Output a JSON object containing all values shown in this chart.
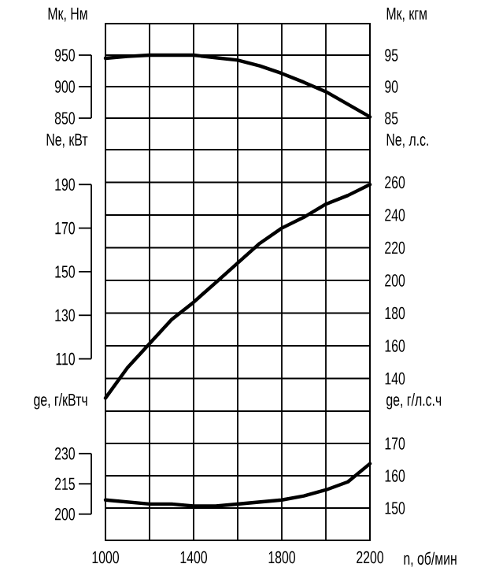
{
  "chart_data": [
    {
      "type": "line",
      "ylabel": "Мк, Нм",
      "y2label": "Мк, кгм",
      "x": [
        1000,
        1100,
        1200,
        1300,
        1400,
        1500,
        1600,
        1700,
        1800,
        1900,
        2000,
        2100,
        2200
      ],
      "series": [
        {
          "color": "#000000",
          "values": [
            945,
            948,
            950,
            950,
            950,
            946,
            942,
            933,
            921,
            907,
            892,
            872,
            852
          ]
        }
      ],
      "xlim": [
        1000,
        2200
      ],
      "xticks": [
        1000,
        {
          "value": 1200,
          "label": null
        },
        1400,
        {
          "value": 1600,
          "label": null
        },
        1800,
        {
          "value": 2000,
          "label": null
        },
        2200
      ],
      "ylim": [
        800,
        1000
      ],
      "yticks": [
        850,
        900,
        950
      ],
      "y2lim": [
        80,
        100
      ],
      "y2ticks": [
        85,
        90,
        95
      ],
      "grid": true,
      "tick_labels": "y"
    },
    {
      "type": "line",
      "ylabel": "Ne, кВт",
      "y2label": "Ne, л.с.",
      "x": [
        1000,
        1100,
        1200,
        1300,
        1400,
        1500,
        1600,
        1700,
        1800,
        1900,
        2000,
        2100,
        2200
      ],
      "series": [
        {
          "color": "#000000",
          "values": [
            92,
            106,
            117,
            128,
            136,
            145,
            154,
            163,
            170,
            175,
            181,
            185,
            190
          ]
        }
      ],
      "xlim": [
        1000,
        2200
      ],
      "xticks": [
        1000,
        {
          "value": 1200,
          "label": null
        },
        1400,
        {
          "value": 1600,
          "label": null
        },
        1800,
        {
          "value": 2000,
          "label": null
        },
        2200
      ],
      "ylim": [
        86,
        206
      ],
      "yticks": [
        110,
        130,
        150,
        170,
        190
      ],
      "y2lim": [
        120,
        280
      ],
      "y2ticks": [
        140,
        160,
        180,
        200,
        220,
        240,
        260
      ],
      "grid": true,
      "tick_labels": "y"
    },
    {
      "type": "line",
      "ylabel": "ge, г/кВтч",
      "y2label": "ge, г/л.с.ч",
      "xlabel": "n, об/мин",
      "x": [
        1000,
        1100,
        1200,
        1300,
        1400,
        1500,
        1600,
        1700,
        1800,
        1900,
        2000,
        2100,
        2200
      ],
      "series": [
        {
          "color": "#000000",
          "values": [
            207,
            206,
            205,
            205,
            204,
            204,
            205,
            206,
            207,
            209,
            212,
            216,
            225
          ]
        }
      ],
      "xlim": [
        1000,
        2200
      ],
      "xticks": [
        1000,
        {
          "value": 1200,
          "label": null
        },
        1400,
        {
          "value": 1600,
          "label": null
        },
        1800,
        {
          "value": 2000,
          "label": null
        },
        2200
      ],
      "ylim": [
        187,
        251
      ],
      "yticks": [
        200,
        215,
        230
      ],
      "y2lim": [
        140,
        180
      ],
      "y2ticks": [
        150,
        160,
        170
      ],
      "grid": true
    }
  ]
}
